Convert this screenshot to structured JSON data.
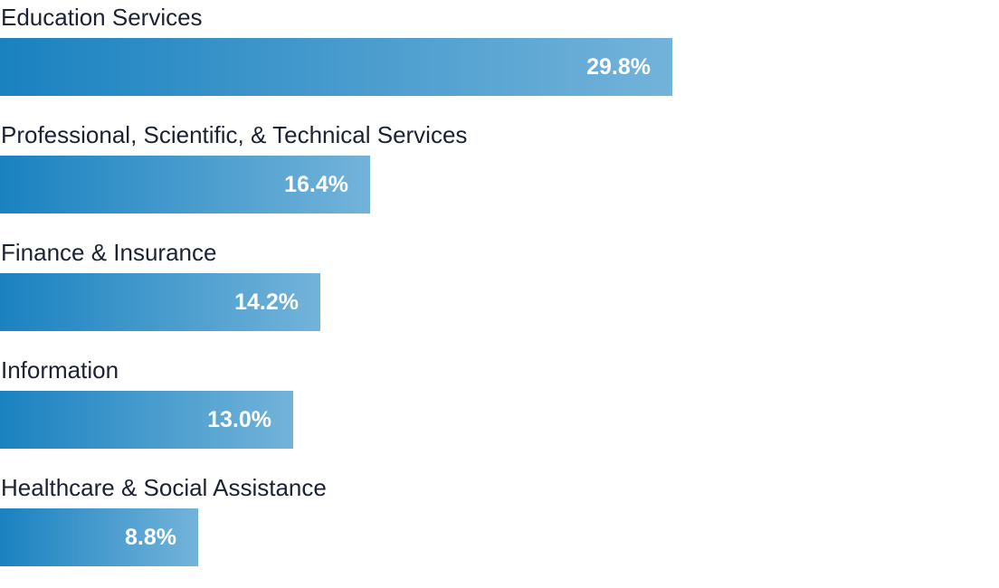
{
  "chart_data": {
    "type": "bar",
    "orientation": "horizontal",
    "title": "",
    "xlabel": "",
    "ylabel": "",
    "categories": [
      "Education Services",
      "Professional, Scientific, & Technical Services",
      "Finance & Insurance",
      "Information",
      "Healthcare & Social Assistance"
    ],
    "values": [
      29.8,
      16.4,
      14.2,
      13.0,
      8.8
    ],
    "value_labels": [
      "29.8%",
      "16.4%",
      "14.2%",
      "13.0%",
      "8.8%"
    ],
    "xlim": [
      0,
      44.3
    ],
    "grid": false,
    "legend": "none",
    "colors": {
      "bar_start": "#1a82c0",
      "bar_end": "#73b3da",
      "label_text": "#1b2233",
      "value_text": "#ffffff"
    }
  }
}
